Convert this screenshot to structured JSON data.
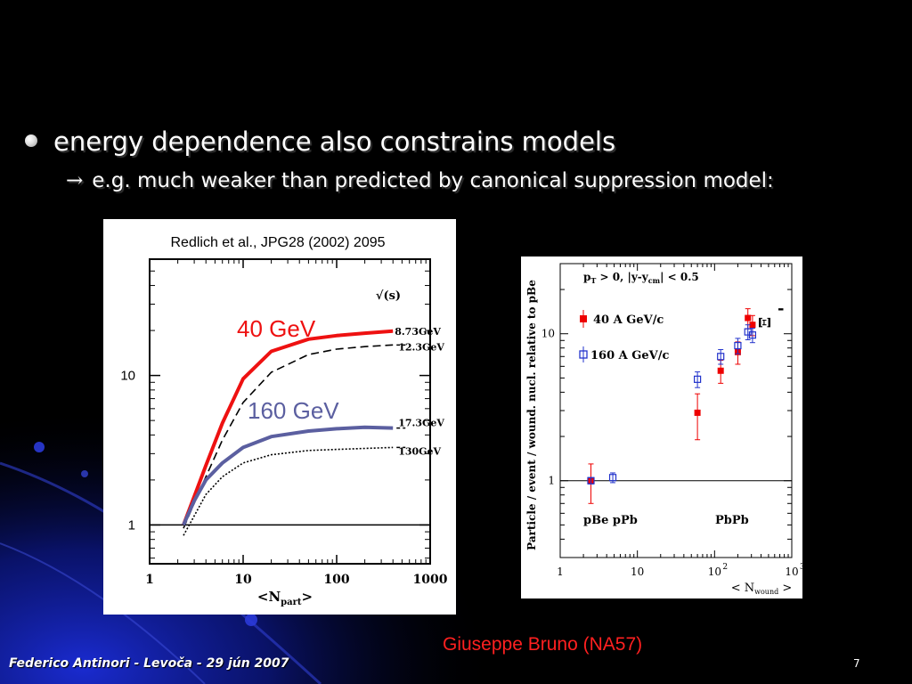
{
  "slide": {
    "bullet": "energy dependence also constrains models",
    "sub_arrow": "→",
    "sub_bullet": "e.g. much weaker than predicted by canonical suppression model:",
    "credit": "Giuseppe Bruno (NA57)",
    "footer": "Federico Antinori - Levoča - 29 jún 2007",
    "page_number": "7"
  },
  "chart_data": [
    {
      "type": "line",
      "title": "Redlich et al., JPG28 (2002) 2095",
      "xlabel": "<N",
      "xlabel_sub": "part",
      "xlabel_end": ">",
      "ylabel": "",
      "xscale": "log",
      "yscale": "log",
      "xlim": [
        1,
        1000
      ],
      "ylim": [
        0.55,
        60
      ],
      "x_tick_labels": [
        "1",
        "10",
        "100",
        "1000"
      ],
      "y_tick_labels": [
        "1",
        "10"
      ],
      "legend_title": "√(s)",
      "series": [
        {
          "name": "8.73GeV",
          "style": "solid-red",
          "x": [
            2.3,
            3,
            4,
            6,
            10,
            20,
            50,
            100,
            200,
            400
          ],
          "y": [
            1.0,
            1.55,
            2.5,
            4.8,
            9.5,
            14.5,
            17.5,
            18.5,
            19.2,
            19.8
          ]
        },
        {
          "name": "12.3GeV",
          "style": "dashed",
          "x": [
            2.3,
            3,
            4,
            6,
            10,
            20,
            50,
            100,
            200,
            400
          ],
          "y": [
            0.95,
            1.4,
            2.1,
            3.7,
            6.6,
            10.5,
            13.8,
            15.0,
            15.6,
            16.0
          ]
        },
        {
          "name": "17.3GeV",
          "style": "solid-slate",
          "x": [
            2.3,
            3,
            4,
            6,
            10,
            20,
            50,
            100,
            200,
            400
          ],
          "y": [
            1.0,
            1.45,
            2.0,
            2.6,
            3.3,
            3.9,
            4.25,
            4.4,
            4.5,
            4.45
          ]
        },
        {
          "name": "130GeV",
          "style": "dotted",
          "x": [
            2.3,
            3,
            4,
            6,
            10,
            20,
            50,
            100,
            200,
            400
          ],
          "y": [
            0.85,
            1.15,
            1.6,
            2.1,
            2.6,
            2.95,
            3.15,
            3.2,
            3.25,
            3.3
          ]
        }
      ],
      "annotations": [
        {
          "text": "40 GeV",
          "color": "#ee1111"
        },
        {
          "text": "160 GeV",
          "color": "#5b5fa0"
        }
      ]
    },
    {
      "type": "scatter",
      "title": "",
      "ylabel": "Particle / event / wound. nucl. relative to pBe",
      "xlabel": "< N",
      "xlabel_sub": "wound",
      "xlabel_end": " >",
      "xscale": "log",
      "yscale": "log",
      "xlim": [
        1,
        1000
      ],
      "ylim": [
        0.3,
        30
      ],
      "x_tick_labels": [
        "1",
        "10",
        "10",
        "10"
      ],
      "x_tick_sups": [
        "",
        "",
        "2",
        "3"
      ],
      "y_tick_labels": [
        "1",
        "10"
      ],
      "cut_label": "p",
      "cut_label_sub": "T",
      "cut_label_rest": " > 0,   |y-y",
      "cut_label_sub2": "cm",
      "cut_label_end": "| < 0.5",
      "particle_label": "Ξ",
      "particle_sup": "-",
      "group_labels": [
        "pBe pPb",
        "PbPb"
      ],
      "series": [
        {
          "name": "40 A GeV/c",
          "marker": "filled-square",
          "color": "#ee0000",
          "x": [
            2.5,
            60,
            120,
            200,
            270,
            310
          ],
          "y": [
            1.0,
            2.9,
            5.6,
            7.5,
            12.8,
            11.5
          ],
          "err": [
            0.3,
            1.0,
            1.0,
            1.3,
            2.0,
            1.8
          ]
        },
        {
          "name": "160 A GeV/c",
          "marker": "open-square",
          "color": "#2233cc",
          "x": [
            2.5,
            4.8,
            60,
            120,
            200,
            270,
            310
          ],
          "y": [
            1.0,
            1.05,
            4.9,
            7.0,
            8.3,
            10.3,
            9.8
          ],
          "err": [
            0.05,
            0.08,
            0.6,
            0.8,
            1.0,
            1.2,
            1.1
          ]
        }
      ]
    }
  ]
}
